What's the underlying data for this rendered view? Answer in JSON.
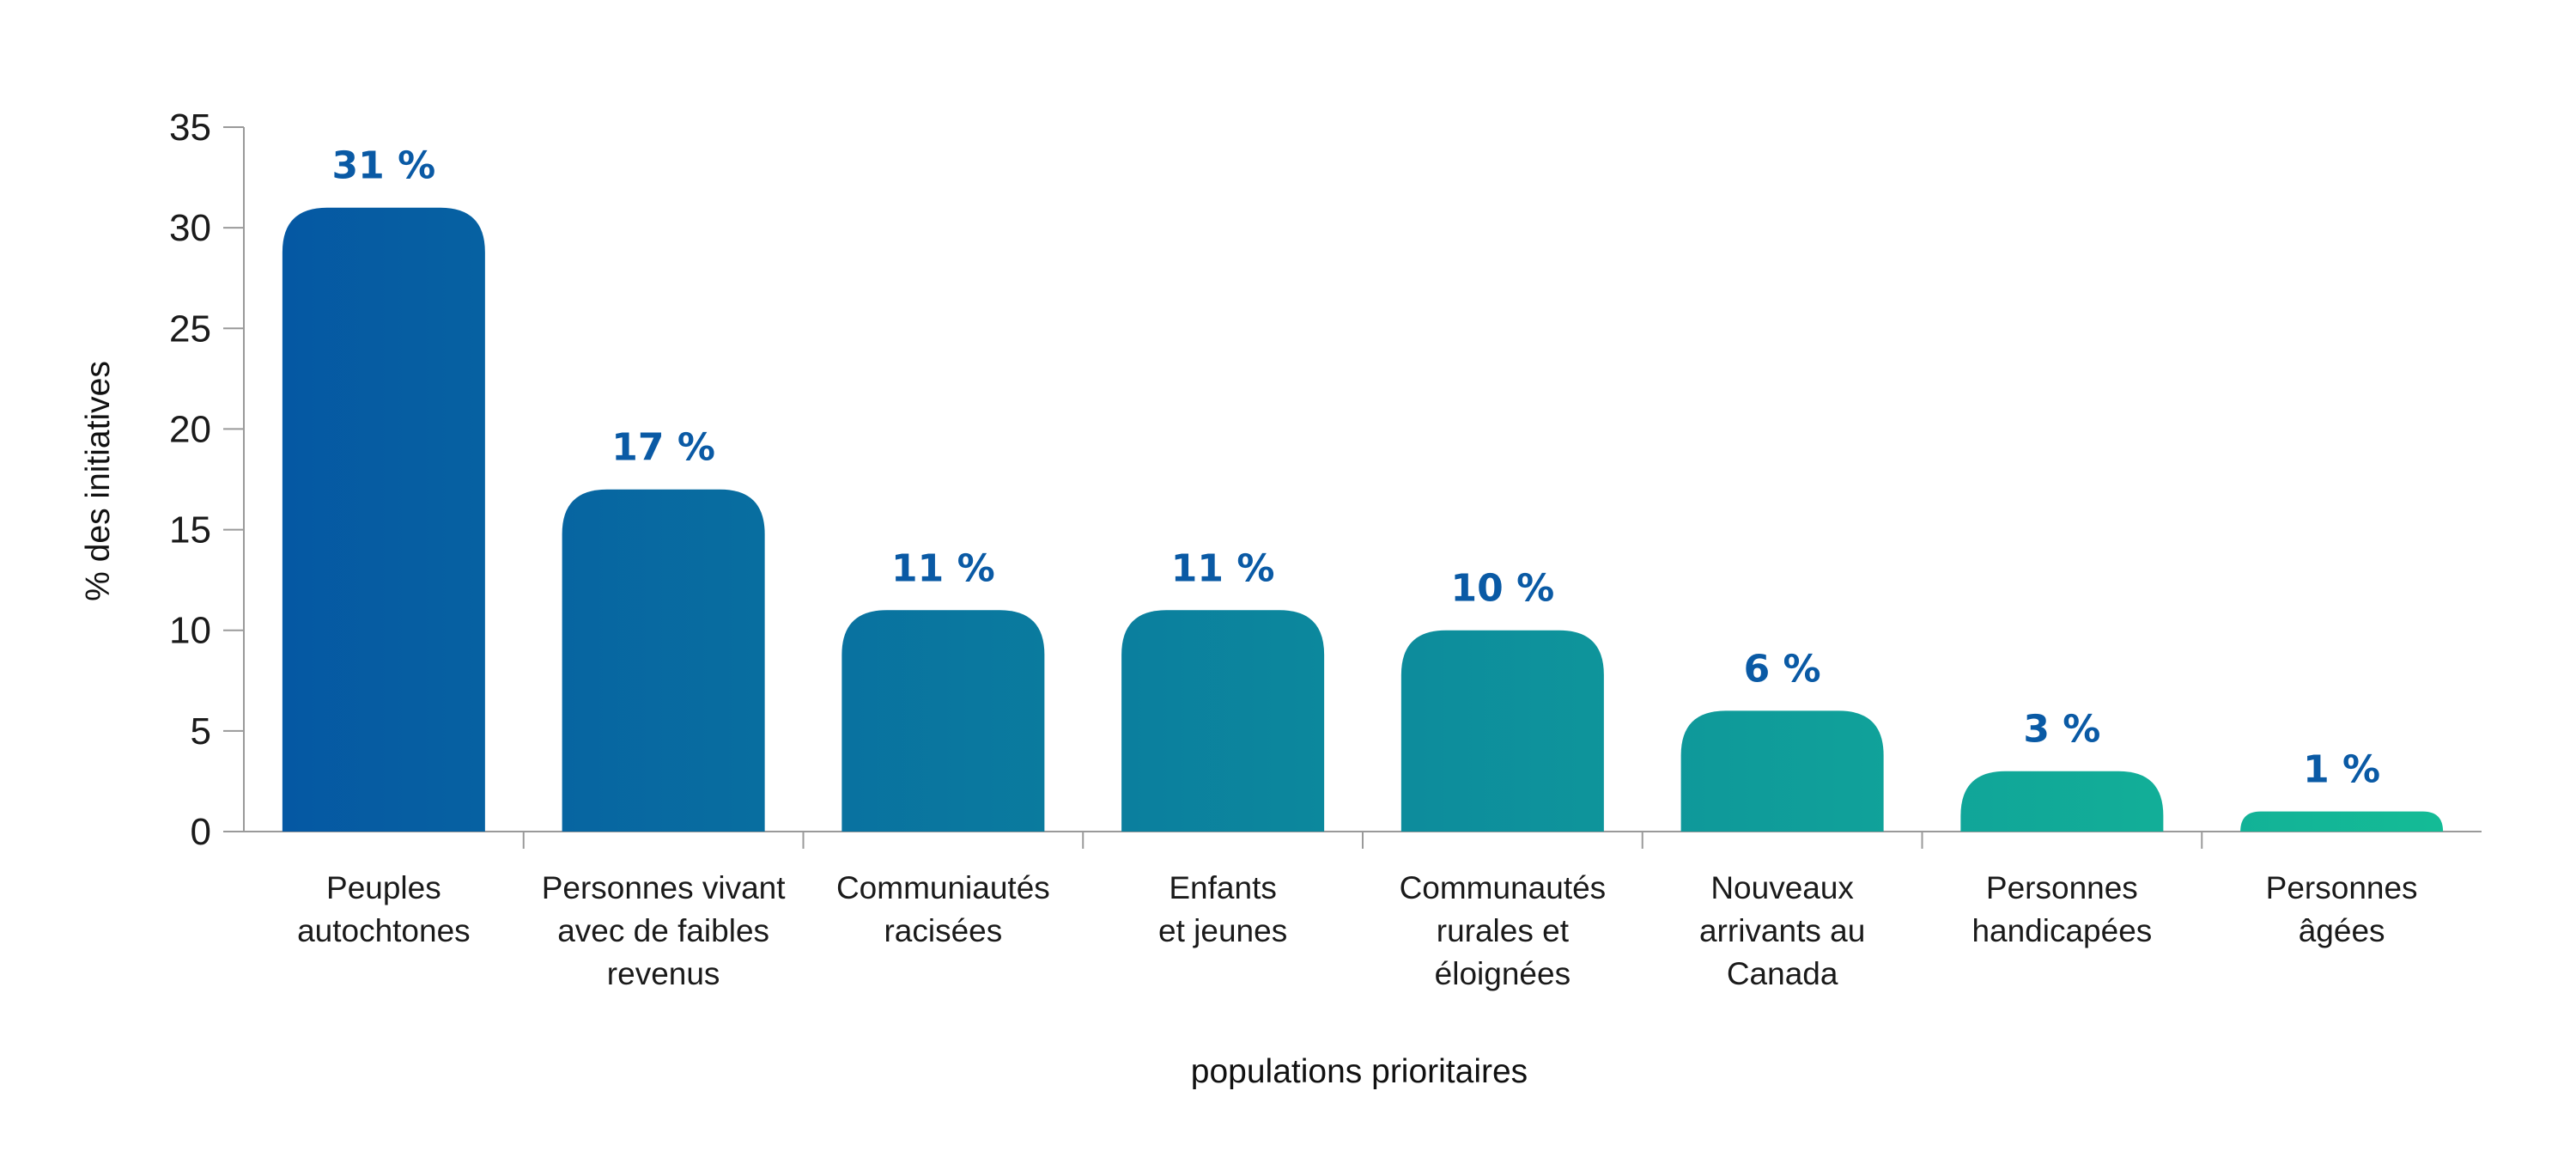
{
  "chart_data": {
    "type": "bar",
    "title": "",
    "xlabel": "populations prioritaires",
    "ylabel": "% des initiatives",
    "ylim": [
      0,
      35
    ],
    "yticks": [
      "0",
      "5",
      "10",
      "15",
      "20",
      "25",
      "30",
      "35"
    ],
    "grid": false,
    "legend": "none",
    "categories": [
      [
        "Peuples",
        "autochtones"
      ],
      [
        "Personnes vivant",
        "avec de faibles",
        "revenus"
      ],
      [
        "Communiautés",
        "racisées"
      ],
      [
        "Enfants",
        "et jeunes"
      ],
      [
        "Communautés",
        "rurales et",
        "éloignées"
      ],
      [
        "Nouveaux",
        "arrivants au",
        "Canada"
      ],
      [
        "Personnes",
        "handicapées"
      ],
      [
        "Personnes",
        "âgées"
      ]
    ],
    "values": [
      31,
      17,
      11,
      11,
      10,
      6,
      3,
      1
    ],
    "value_labels": [
      "31 %",
      "17 %",
      "11 %",
      "11 %",
      "10 %",
      "6 %",
      "3 %",
      "1 %"
    ],
    "colors": {
      "bar_gradient_start": "#0558a3",
      "bar_gradient_end": "#14bc96",
      "value_label": "#0a5aa5",
      "axis": "#9a9a9a",
      "text": "#1a1a1a"
    }
  }
}
